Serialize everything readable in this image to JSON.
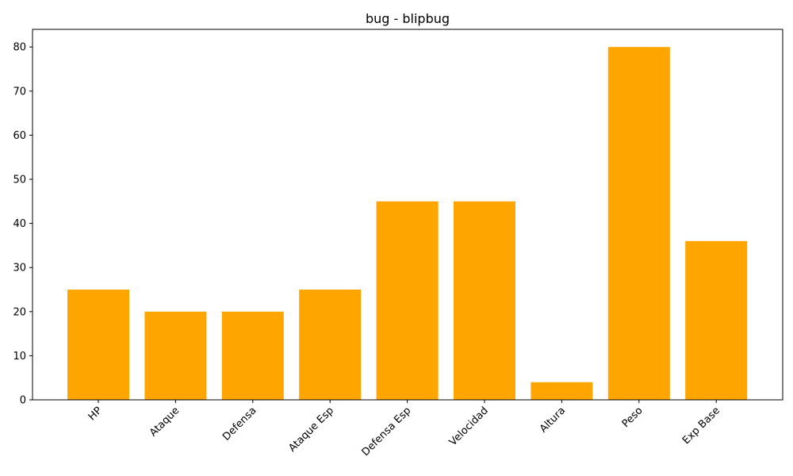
{
  "chart_data": {
    "type": "bar",
    "title": "bug - blipbug",
    "xlabel": "",
    "ylabel": "",
    "categories": [
      "HP",
      "Ataque",
      "Defensa",
      "Ataque Esp",
      "Defensa Esp",
      "Velocidad",
      "Altura",
      "Peso",
      "Exp Base"
    ],
    "values": [
      25,
      20,
      20,
      25,
      45,
      45,
      4,
      80,
      36
    ],
    "ylim": [
      0,
      84
    ],
    "yticks": [
      0,
      10,
      20,
      30,
      40,
      50,
      60,
      70,
      80
    ],
    "bar_color": "#FFA500",
    "grid": false,
    "legend": "none",
    "xtick_rotation": 45
  }
}
